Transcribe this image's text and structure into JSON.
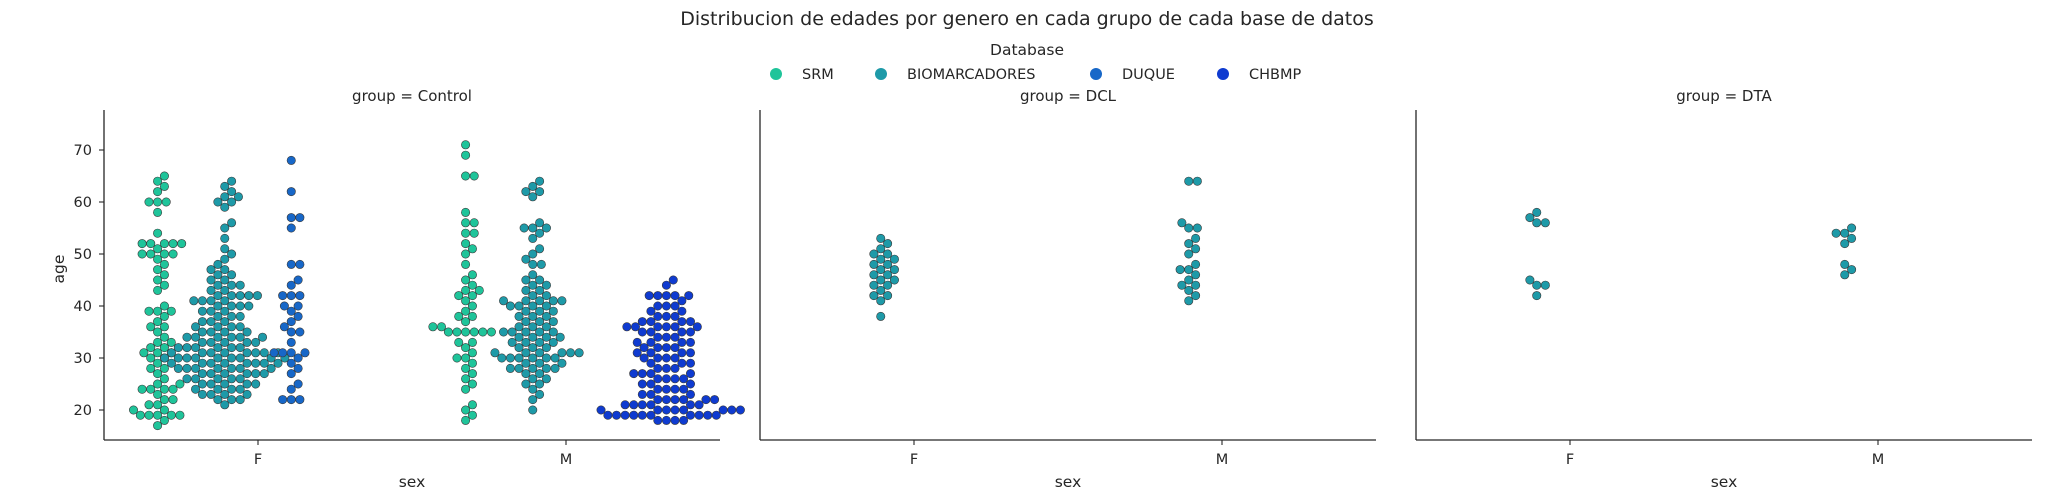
{
  "title": "Distribucion de edades por genero en cada grupo de cada base de datos",
  "legend": {
    "title": "Database",
    "items": [
      {
        "label": "SRM",
        "color": "#1fc49a"
      },
      {
        "label": "BIOMARCADORES",
        "color": "#1e9aa8"
      },
      {
        "label": "DUQUE",
        "color": "#1767c8"
      },
      {
        "label": "CHBMP",
        "color": "#0f3bd0"
      }
    ]
  },
  "chart_data": {
    "type": "scatter",
    "subtype": "swarm",
    "xlabel": "sex",
    "ylabel": "age",
    "categories": [
      "F",
      "M"
    ],
    "hue_order": [
      "SRM",
      "BIOMARCADORES",
      "DUQUE",
      "CHBMP"
    ],
    "ylim": [
      14,
      74
    ],
    "yticks": [
      20,
      30,
      40,
      50,
      60,
      70
    ],
    "grid": false,
    "legend_position": "top-center",
    "panels": [
      {
        "title": "group = Control",
        "series": [
          {
            "name": "SRM",
            "sex": "F",
            "values": [
              65,
              64,
              63,
              62,
              60,
              60,
              60,
              58,
              54,
              52,
              52,
              52,
              52,
              52,
              51,
              50,
              50,
              50,
              50,
              49,
              48,
              47,
              46,
              45,
              44,
              43,
              40,
              39,
              39,
              39,
              38,
              37,
              36,
              36,
              35,
              34,
              33,
              33,
              32,
              32,
              31,
              31,
              31,
              30,
              30,
              29,
              28,
              28,
              27,
              26,
              25,
              25,
              24,
              24,
              24,
              24,
              23,
              22,
              22,
              21,
              21,
              20,
              20,
              19,
              19,
              19,
              19,
              19,
              18,
              17
            ]
          },
          {
            "name": "BIOMARCADORES",
            "sex": "F",
            "values": [
              64,
              63,
              62,
              61,
              61,
              60,
              60,
              59,
              56,
              55,
              53,
              51,
              50,
              49,
              48,
              47,
              47,
              46,
              46,
              45,
              45,
              44,
              44,
              44,
              43,
              43,
              42,
              42,
              42,
              42,
              42,
              41,
              41,
              41,
              41,
              40,
              40,
              40,
              40,
              39,
              39,
              39,
              38,
              38,
              38,
              37,
              37,
              37,
              36,
              36,
              36,
              36,
              35,
              35,
              35,
              35,
              34,
              34,
              34,
              34,
              34,
              34,
              33,
              33,
              33,
              33,
              33,
              32,
              32,
              32,
              32,
              32,
              32,
              31,
              31,
              31,
              31,
              31,
              31,
              31,
              31,
              30,
              30,
              30,
              30,
              30,
              30,
              30,
              30,
              30,
              29,
              29,
              29,
              29,
              29,
              29,
              29,
              29,
              28,
              28,
              28,
              28,
              28,
              28,
              28,
              27,
              27,
              27,
              27,
              27,
              27,
              26,
              26,
              26,
              26,
              26,
              25,
              25,
              25,
              25,
              25,
              24,
              24,
              24,
              24,
              23,
              23,
              23,
              23,
              22,
              22,
              22,
              21
            ]
          },
          {
            "name": "DUQUE",
            "sex": "F",
            "values": [
              68,
              62,
              57,
              57,
              55,
              48,
              48,
              45,
              44,
              42,
              42,
              42,
              40,
              40,
              39,
              38,
              37,
              36,
              35,
              35,
              33,
              31,
              31,
              31,
              31,
              30,
              29,
              28,
              27,
              25,
              24,
              22,
              22,
              22
            ]
          },
          {
            "name": "SRM",
            "sex": "M",
            "values": [
              71,
              69,
              65,
              65,
              58,
              56,
              56,
              54,
              54,
              52,
              51,
              50,
              48,
              46,
              45,
              44,
              43,
              43,
              42,
              42,
              41,
              40,
              39,
              38,
              38,
              37,
              36,
              36,
              35,
              35,
              35,
              35,
              35,
              35,
              33,
              33,
              32,
              31,
              30,
              30,
              29,
              28,
              27,
              26,
              25,
              24,
              21,
              20,
              19,
              18
            ]
          },
          {
            "name": "BIOMARCADORES",
            "sex": "M",
            "values": [
              64,
              63,
              62,
              62,
              61,
              56,
              55,
              55,
              55,
              54,
              53,
              51,
              50,
              49,
              48,
              48,
              46,
              45,
              45,
              44,
              44,
              43,
              43,
              42,
              42,
              41,
              41,
              41,
              41,
              41,
              40,
              40,
              40,
              40,
              39,
              39,
              39,
              38,
              38,
              38,
              37,
              37,
              37,
              36,
              36,
              36,
              35,
              35,
              35,
              35,
              35,
              34,
              34,
              34,
              34,
              33,
              33,
              33,
              33,
              32,
              32,
              32,
              31,
              31,
              31,
              31,
              31,
              31,
              30,
              30,
              30,
              30,
              30,
              30,
              29,
              29,
              29,
              28,
              28,
              28,
              28,
              28,
              27,
              27,
              26,
              26,
              25,
              25,
              24,
              23,
              22,
              20
            ]
          },
          {
            "name": "CHBMP",
            "sex": "M",
            "values": [
              45,
              44,
              42,
              42,
              42,
              42,
              42,
              41,
              40,
              40,
              40,
              39,
              39,
              38,
              38,
              38,
              37,
              37,
              37,
              37,
              36,
              36,
              36,
              36,
              36,
              36,
              35,
              35,
              35,
              35,
              34,
              34,
              34,
              33,
              33,
              33,
              33,
              32,
              32,
              32,
              32,
              31,
              31,
              31,
              31,
              30,
              30,
              30,
              30,
              29,
              29,
              29,
              28,
              28,
              28,
              27,
              27,
              27,
              27,
              26,
              26,
              26,
              26,
              25,
              25,
              25,
              24,
              24,
              24,
              24,
              23,
              23,
              23,
              22,
              22,
              22,
              22,
              22,
              22,
              21,
              21,
              21,
              21,
              21,
              21,
              20,
              20,
              20,
              20,
              20,
              20,
              20,
              20,
              19,
              19,
              19,
              19,
              19,
              19,
              19,
              19,
              19,
              19,
              18,
              18,
              18,
              18
            ]
          }
        ]
      },
      {
        "title": "group = DCL",
        "series": [
          {
            "name": "BIOMARCADORES",
            "sex": "F",
            "values": [
              53,
              52,
              51,
              50,
              50,
              49,
              49,
              48,
              48,
              47,
              47,
              46,
              46,
              45,
              45,
              44,
              44,
              43,
              42,
              42,
              41,
              38
            ]
          },
          {
            "name": "BIOMARCADORES",
            "sex": "M",
            "values": [
              64,
              64,
              56,
              55,
              55,
              53,
              52,
              51,
              50,
              48,
              47,
              47,
              46,
              45,
              44,
              44,
              43,
              42,
              41
            ]
          }
        ]
      },
      {
        "title": "group = DTA",
        "series": [
          {
            "name": "BIOMARCADORES",
            "sex": "F",
            "values": [
              58,
              57,
              56,
              56,
              45,
              44,
              44,
              42
            ]
          },
          {
            "name": "BIOMARCADORES",
            "sex": "M",
            "values": [
              55,
              54,
              54,
              53,
              52,
              48,
              47,
              46
            ]
          }
        ]
      }
    ]
  }
}
